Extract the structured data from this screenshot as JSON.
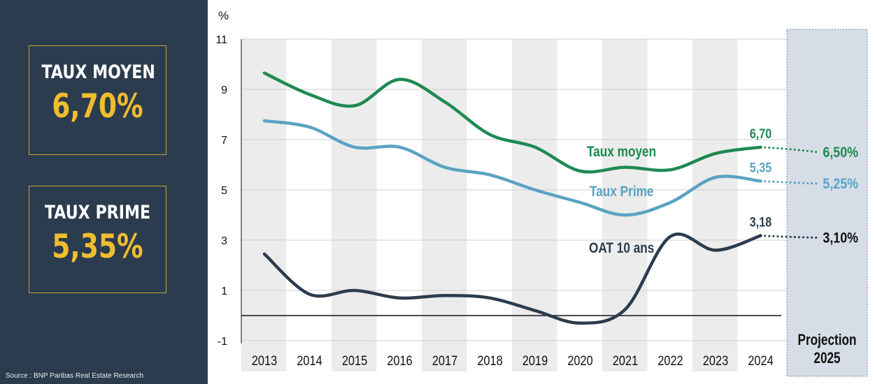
{
  "sidebar": {
    "kpis": [
      {
        "label": "TAUX MOYEN",
        "value": "6,70%"
      },
      {
        "label": "TAUX PRIME",
        "value": "5,35%"
      }
    ],
    "source": "Source : BNP Paribas Real Estate Research"
  },
  "chart_data": {
    "type": "line",
    "ylabel": "%",
    "ylim": [
      -1,
      11
    ],
    "yticks": [
      -1,
      1,
      3,
      5,
      7,
      9,
      11
    ],
    "categories": [
      "2013",
      "2014",
      "2015",
      "2016",
      "2017",
      "2018",
      "2019",
      "2020",
      "2021",
      "2022",
      "2023",
      "2024"
    ],
    "projection_label": [
      "Projection",
      "2025"
    ],
    "series": [
      {
        "name": "Taux moyen",
        "color": "#1e8a52",
        "values": [
          9.65,
          8.8,
          8.35,
          9.4,
          8.5,
          7.2,
          6.7,
          5.75,
          5.9,
          5.8,
          6.45,
          6.7
        ],
        "end_label": "6,70",
        "projection": 6.5,
        "projection_label": "6,50%"
      },
      {
        "name": "Taux Prime",
        "color": "#5aa3c4",
        "values": [
          7.75,
          7.5,
          6.7,
          6.7,
          5.9,
          5.6,
          5.0,
          4.5,
          4.0,
          4.5,
          5.5,
          5.35
        ],
        "end_label": "5,35",
        "projection": 5.25,
        "projection_label": "5,25%"
      },
      {
        "name": "OAT 10 ans",
        "color": "#2b3c4e",
        "values": [
          2.45,
          0.85,
          1.0,
          0.7,
          0.8,
          0.7,
          0.2,
          -0.3,
          0.25,
          3.15,
          2.6,
          3.18
        ],
        "end_label": "3,18",
        "projection": 3.1,
        "projection_label": "3,10%"
      }
    ]
  }
}
